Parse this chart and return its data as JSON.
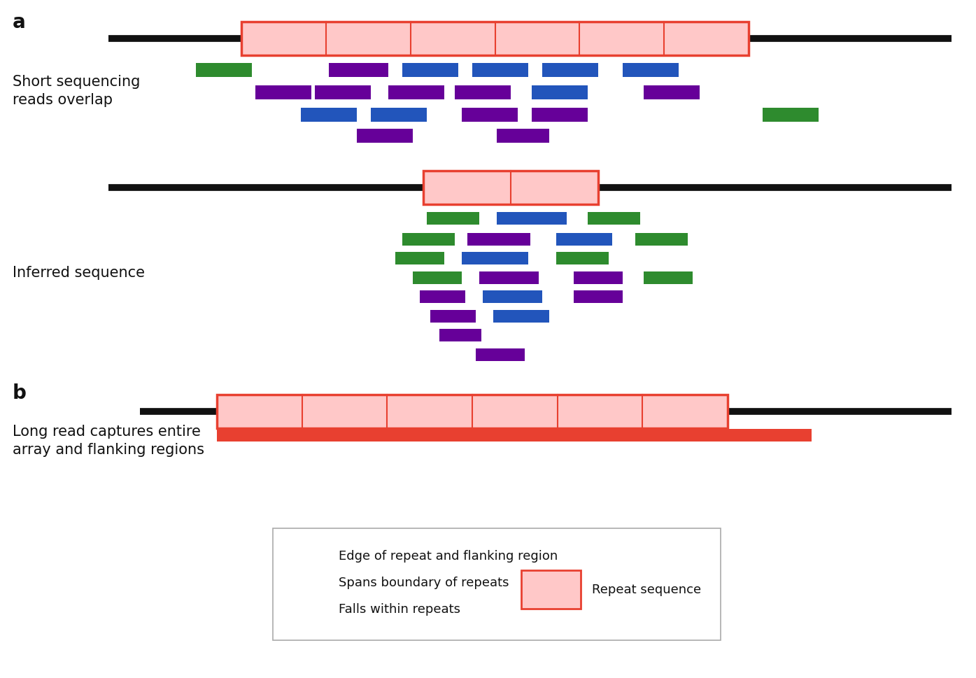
{
  "bg_color": "#ffffff",
  "repeat_fill": "#ffc8c8",
  "repeat_edge": "#e84030",
  "green": "#2e8b2e",
  "blue": "#2255bb",
  "purple": "#660099",
  "orange_red": "#e84030",
  "black": "#111111",
  "panel_a_label": "a",
  "panel_b_label": "b",
  "label_short": "Short sequencing\nreads overlap",
  "label_inferred": "Inferred sequence",
  "label_long": "Long read captures entire\narray and flanking regions",
  "legend_green": "Edge of repeat and flanking region",
  "legend_blue": "Spans boundary of repeats",
  "legend_purple": "Falls within repeats",
  "legend_repeat": "Repeat sequence",
  "fig_w": 13.95,
  "fig_h": 9.69,
  "dpi": 100
}
